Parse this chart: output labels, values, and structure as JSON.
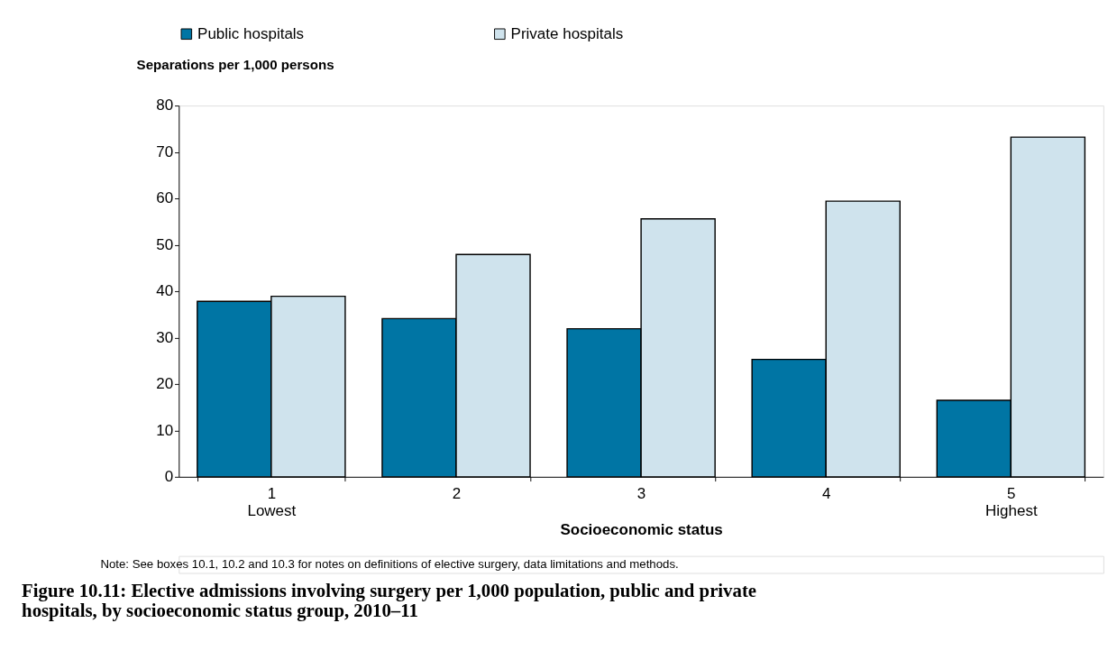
{
  "chart_data": {
    "type": "bar",
    "title": "Figure 10.11: Elective admissions involving surgery per 1,000 population, public and private hospitals, by socioeconomic status group, 2010–11",
    "xlabel": "Socioeconomic status",
    "ylabel": "Separations per 1,000 persons",
    "categories": [
      "1\nLowest",
      "2",
      "3",
      "4",
      "5\nHighest"
    ],
    "series": [
      {
        "name": "Public hospitals",
        "color": "#0075a4",
        "values": [
          37.8,
          34.1,
          31.9,
          25.3,
          16.5
        ]
      },
      {
        "name": "Private hospitals",
        "color": "#cfe3ed",
        "values": [
          38.9,
          47.9,
          55.6,
          59.4,
          73.2
        ]
      }
    ],
    "ylim": [
      0,
      80
    ],
    "yticks": [
      0,
      10,
      20,
      30,
      40,
      50,
      60,
      70,
      80
    ],
    "grid": false,
    "legend": "top",
    "annotations": [
      "Note: See boxes 10.1, 10.2 and 10.3 for notes on definitions of elective surgery, data limitations and methods."
    ]
  }
}
